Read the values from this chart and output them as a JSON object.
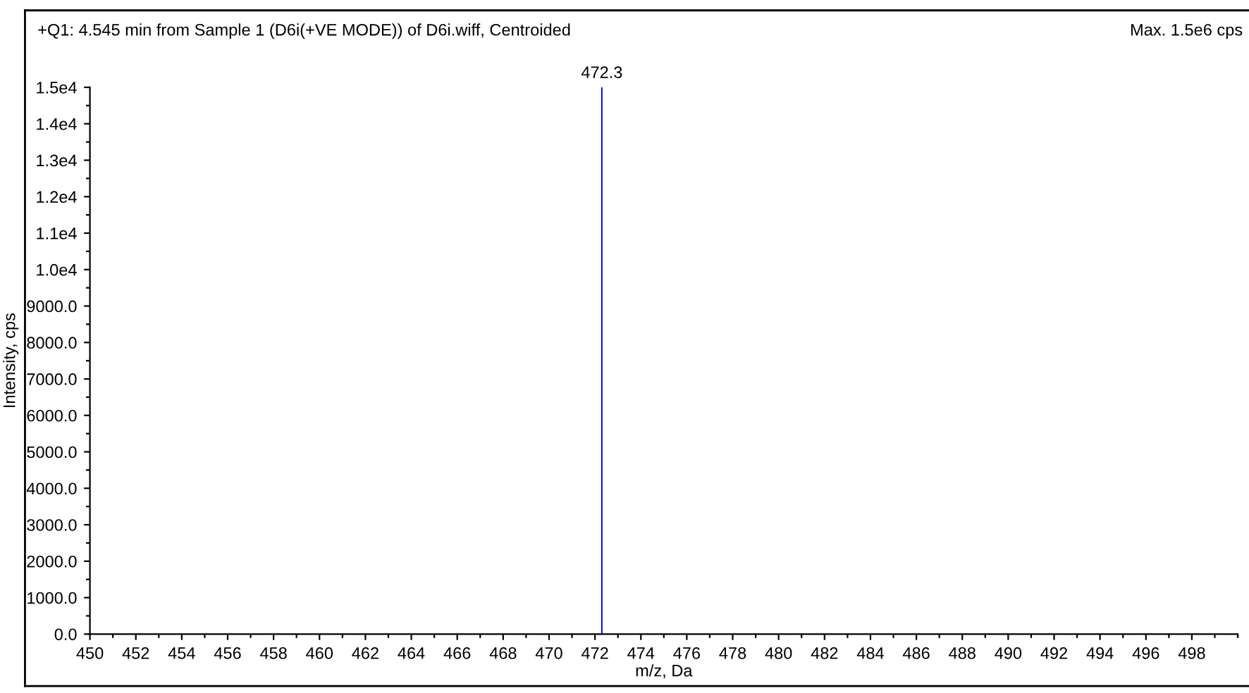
{
  "chart_data": {
    "type": "bar",
    "title": "+Q1: 4.545 min from Sample 1 (D6i(+VE MODE)) of D6i.wiff, Centroided",
    "xlabel": "m/z, Da",
    "ylabel": "Intensity, cps",
    "x": [
      472.3
    ],
    "values": [
      15000
    ],
    "color": "#0000ff",
    "annotations": [
      {
        "text": "472.3",
        "x": 472.3,
        "y": 15000
      },
      "Max. 1.5e6 cps"
    ],
    "xlim": [
      450,
      500
    ],
    "xticks": [
      450,
      452,
      454,
      456,
      458,
      460,
      462,
      464,
      466,
      468,
      470,
      472,
      474,
      476,
      478,
      480,
      482,
      484,
      486,
      488,
      490,
      492,
      494,
      496,
      498
    ],
    "ylim": [
      0,
      15000
    ],
    "yticks": [
      {
        "value": 0,
        "label": "0.0"
      },
      {
        "value": 1000,
        "label": "1000.0"
      },
      {
        "value": 2000,
        "label": "2000.0"
      },
      {
        "value": 3000,
        "label": "3000.0"
      },
      {
        "value": 4000,
        "label": "4000.0"
      },
      {
        "value": 5000,
        "label": "5000.0"
      },
      {
        "value": 6000,
        "label": "6000.0"
      },
      {
        "value": 7000,
        "label": "7000.0"
      },
      {
        "value": 8000,
        "label": "8000.0"
      },
      {
        "value": 9000,
        "label": "9000.0"
      },
      {
        "value": 10000,
        "label": "1.0e4"
      },
      {
        "value": 11000,
        "label": "1.1e4"
      },
      {
        "value": 12000,
        "label": "1.2e4"
      },
      {
        "value": 13000,
        "label": "1.3e4"
      },
      {
        "value": 14000,
        "label": "1.4e4"
      },
      {
        "value": 15000,
        "label": "1.5e4"
      }
    ],
    "grid": false,
    "legend": false
  }
}
